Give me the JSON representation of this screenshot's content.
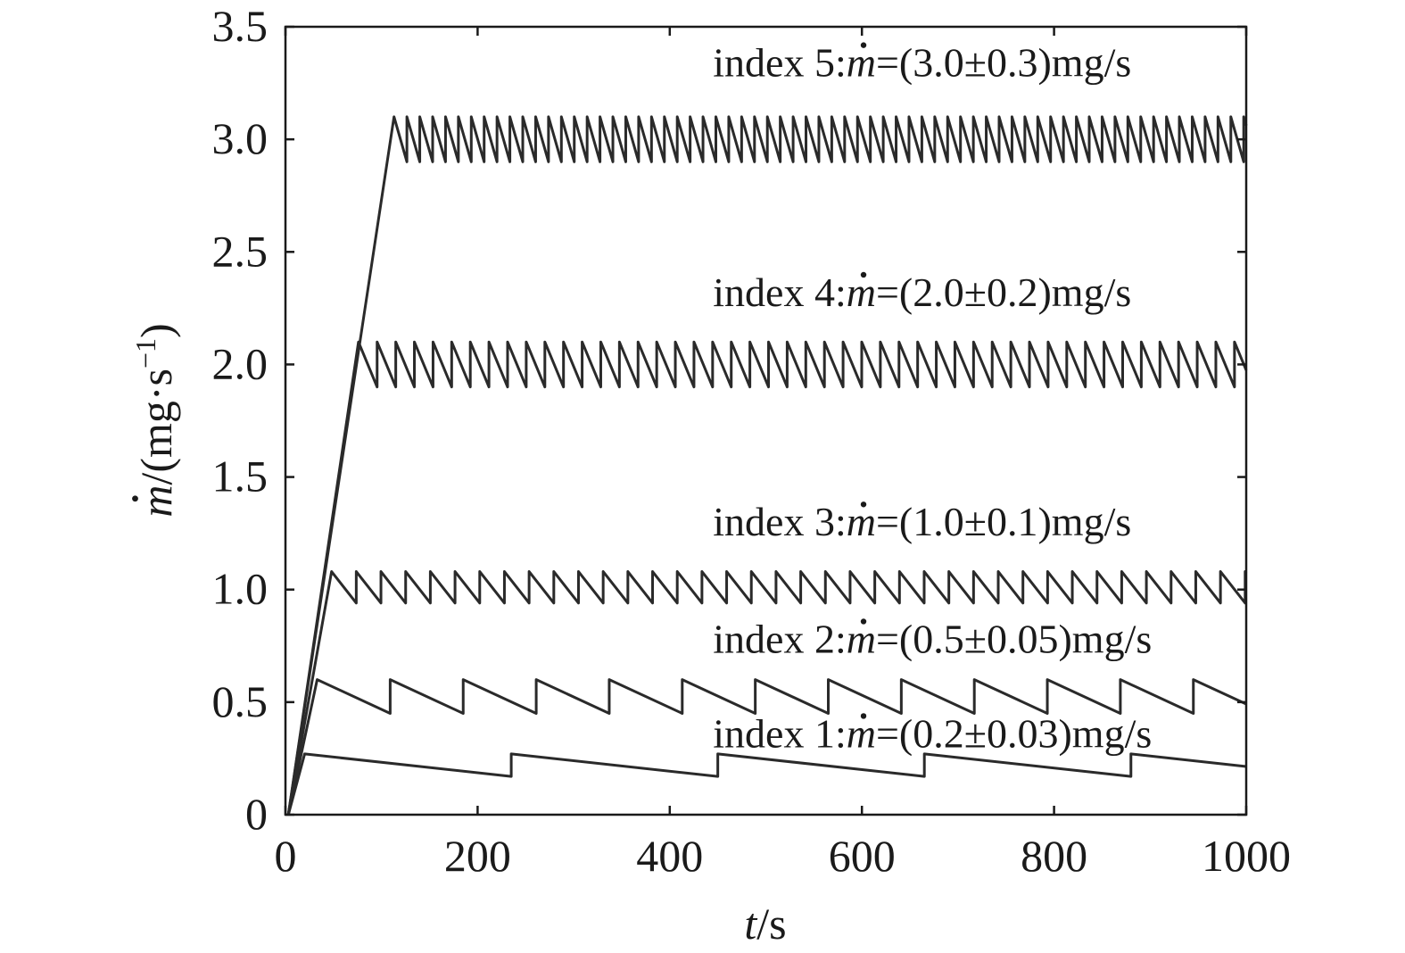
{
  "chart_data": {
    "type": "line",
    "title": "",
    "xlabel": {
      "var": "t",
      "unit": "/s"
    },
    "ylabel": {
      "var": "m",
      "unit": "/(mg·s",
      "sup": "−1",
      "close": ")"
    },
    "xlim": [
      0,
      1000
    ],
    "ylim": [
      0,
      3.5
    ],
    "xticks": [
      0,
      200,
      400,
      600,
      800,
      1000
    ],
    "xtick_labels": [
      "0",
      "200",
      "400",
      "600",
      "800",
      "1000"
    ],
    "yticks": [
      0,
      0.5,
      1.0,
      1.5,
      2.0,
      2.5,
      3.0,
      3.5
    ],
    "ytick_labels": [
      "0",
      "0.5",
      "1.0",
      "1.5",
      "2.0",
      "2.5",
      "3.0",
      "3.5"
    ],
    "grid": false,
    "legend": "none",
    "annotations": [
      {
        "prefix": "index 5:",
        "var": "m",
        "suffix": "=(3.0±0.3)mg/s",
        "x": 445,
        "y": 3.28
      },
      {
        "prefix": "index 4:",
        "var": "m",
        "suffix": "=(2.0±0.2)mg/s",
        "x": 445,
        "y": 2.26
      },
      {
        "prefix": "index 3:",
        "var": "m",
        "suffix": "=(1.0±0.1)mg/s",
        "x": 445,
        "y": 1.24
      },
      {
        "prefix": "index 2:",
        "var": "m",
        "suffix": "=(0.5±0.05)mg/s",
        "x": 445,
        "y": 0.72
      },
      {
        "prefix": "index 1:",
        "var": "m",
        "suffix": "=(0.2±0.03)mg/s",
        "x": 445,
        "y": 0.3
      }
    ],
    "ramp": {
      "slope": 0.0275,
      "start_t": 3
    },
    "series": [
      {
        "index": 1,
        "peak": 0.27,
        "low": 0.17,
        "period": 215,
        "ramp_end": 20
      },
      {
        "index": 2,
        "peak": 0.6,
        "low": 0.45,
        "period": 76,
        "ramp_end": 33
      },
      {
        "index": 3,
        "peak": 1.08,
        "low": 0.94,
        "period": 25.7,
        "ramp_end": 48
      },
      {
        "index": 4,
        "peak": 2.1,
        "low": 1.9,
        "period": 19.4,
        "ramp_end": 76
      },
      {
        "index": 5,
        "peak": 3.1,
        "low": 2.9,
        "period": 13.4,
        "ramp_end": 113
      }
    ]
  }
}
